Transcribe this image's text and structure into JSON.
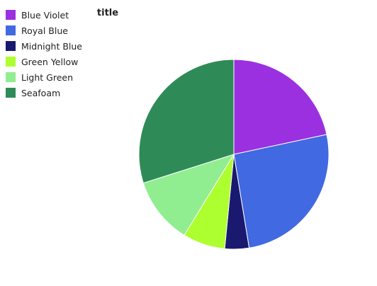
{
  "chart_data": {
    "type": "pie",
    "title": "title",
    "legend_position": "left",
    "series": [
      {
        "name": "Blue Violet",
        "value": 21,
        "color": "#9b30e0"
      },
      {
        "name": "Royal Blue",
        "value": 25,
        "color": "#4169e1"
      },
      {
        "name": "Midnight Blue",
        "value": 4,
        "color": "#191970"
      },
      {
        "name": "Green Yellow",
        "value": 7,
        "color": "#adff2f"
      },
      {
        "name": "Light Green",
        "value": 11,
        "color": "#90ee90"
      },
      {
        "name": "Seafoam",
        "value": 29,
        "color": "#2e8b57"
      }
    ]
  }
}
